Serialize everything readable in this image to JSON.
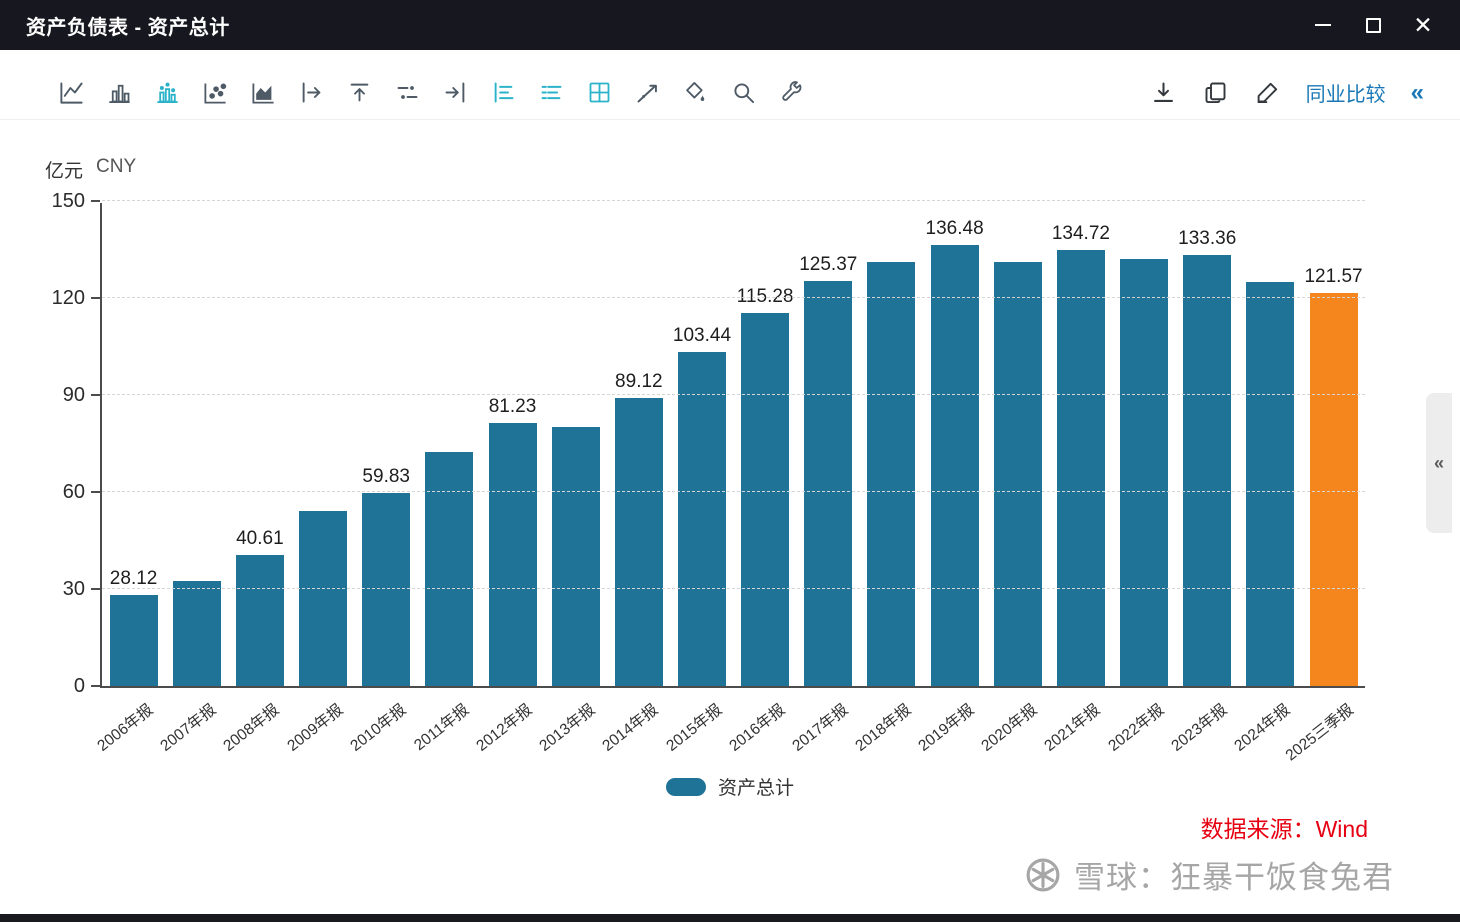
{
  "window": {
    "title": "资产负债表 - 资产总计",
    "controls": {
      "close_glyph": "✕"
    }
  },
  "toolbar": {
    "icons": [
      "line-chart",
      "bar-chart",
      "bar-chart-dotted",
      "scatter-chart",
      "area-chart",
      "bar-shift-right",
      "bar-top-line",
      "threshold-lines",
      "arrow-to-edge",
      "hbar-axis",
      "hbar-plain",
      "grid-table",
      "trend-line",
      "paint-fill",
      "zoom-search",
      "settings-wrench"
    ],
    "active_icons": [
      "bar-chart-dotted",
      "hbar-axis",
      "hbar-plain",
      "grid-table"
    ],
    "right_icons": [
      "download",
      "copy",
      "edit"
    ],
    "peer_compare_label": "同业比较",
    "collapse_glyph": "«"
  },
  "side_panel": {
    "collapse_glyph": "«"
  },
  "chart_data": {
    "type": "bar",
    "title": "资产总计",
    "unit_primary": "亿元",
    "unit_secondary": "CNY",
    "categories": [
      "2006年报",
      "2007年报",
      "2008年报",
      "2009年报",
      "2010年报",
      "2011年报",
      "2012年报",
      "2013年报",
      "2014年报",
      "2015年报",
      "2016年报",
      "2017年报",
      "2018年报",
      "2019年报",
      "2020年报",
      "2021年报",
      "2022年报",
      "2023年报",
      "2024年报",
      "2025三季报"
    ],
    "values": [
      28.12,
      32.5,
      40.61,
      54.0,
      59.83,
      72.5,
      81.23,
      80.2,
      89.12,
      103.44,
      115.28,
      125.37,
      131.0,
      136.48,
      131.0,
      134.72,
      132.0,
      133.36,
      124.8,
      121.57
    ],
    "labels": [
      "28.12",
      null,
      "40.61",
      null,
      "59.83",
      null,
      "81.23",
      null,
      "89.12",
      "103.44",
      "115.28",
      "125.37",
      null,
      "136.48",
      null,
      "134.72",
      null,
      "133.36",
      null,
      "121.57"
    ],
    "ylim": [
      0,
      150
    ],
    "yticks": [
      0,
      30,
      60,
      90,
      120,
      150
    ],
    "grid": "dashed",
    "bar_color": "#1f7396",
    "highlight_color": "#f5861d",
    "highlight_index": 19,
    "legend": [
      {
        "label": "资产总计",
        "color": "#1f7396"
      }
    ],
    "legend_position": "bottom"
  },
  "footer": {
    "source_label": "数据来源：Wind",
    "watermark_label": "雪球：狂暴干饭食兔君",
    "source_color": "#e60012"
  }
}
